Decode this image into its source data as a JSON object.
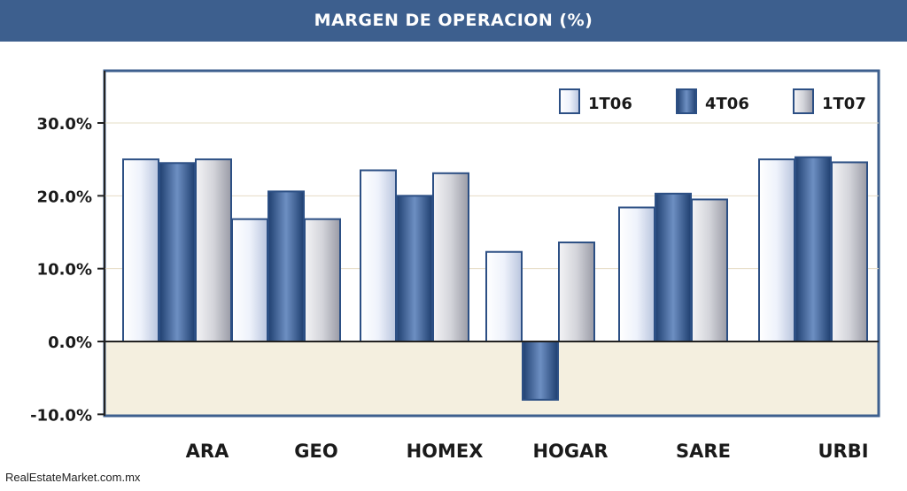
{
  "header": {
    "title": "MARGEN DE OPERACION (%)"
  },
  "footer": {
    "credit": "RealEstateMarket.com.mx"
  },
  "colors": {
    "header_bg": "#3d5f8e",
    "frame": "#3d5f8e",
    "plot_top_bg": "#ffffff",
    "plot_bottom_bg": "#f4efdf",
    "series_1T06": "#eef2fb",
    "series_4T06": "#33588f",
    "series_1T07": "#d0d0d8"
  },
  "chart_data": {
    "type": "bar",
    "title": "MARGEN DE OPERACION (%)",
    "categories": [
      "ARA",
      "GEO",
      "HOMEX",
      "HOGAR",
      "SARE",
      "URBI"
    ],
    "series": [
      {
        "name": "1T06",
        "values": [
          25.0,
          16.8,
          23.5,
          12.3,
          18.4,
          25.0
        ]
      },
      {
        "name": "4T06",
        "values": [
          24.5,
          20.6,
          20.0,
          -8.0,
          20.3,
          25.3
        ]
      },
      {
        "name": "1T07",
        "values": [
          25.0,
          16.8,
          23.1,
          13.6,
          19.5,
          24.6
        ]
      }
    ],
    "yticks": [
      "30.0%",
      "20.0%",
      "10.0%",
      "0.0%",
      "-10.0%"
    ],
    "ytick_values": [
      30,
      20,
      10,
      0,
      -10
    ],
    "ylim": [
      -10,
      35
    ],
    "xlabel": "",
    "ylabel": "",
    "grid": true,
    "legend": "top-right"
  }
}
